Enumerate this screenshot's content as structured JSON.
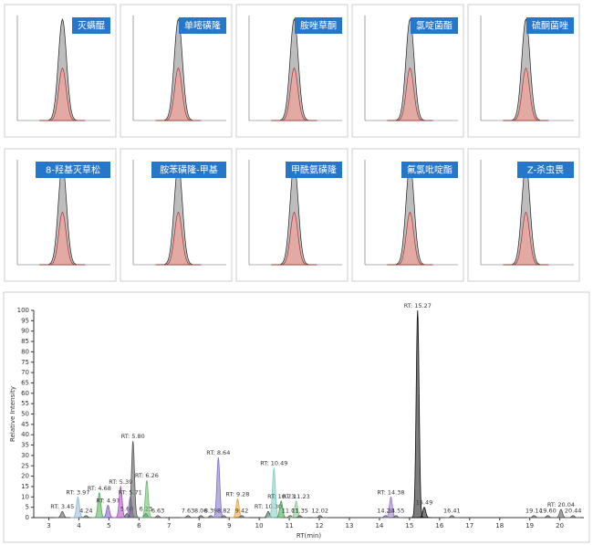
{
  "panels": [
    {
      "label": "灭螨醌"
    },
    {
      "label": "单嘧磺隆"
    },
    {
      "label": "胺唑草酮"
    },
    {
      "label": "氯啶菌酯"
    },
    {
      "label": "硫酮菌唑"
    },
    {
      "label": "8-羟基灭草松"
    },
    {
      "label": "胺苯磺隆-甲基"
    },
    {
      "label": "甲酰氨磺隆"
    },
    {
      "label": "氟氯吡啶酯"
    },
    {
      "label": "Z-杀虫畏"
    }
  ],
  "chart_data": {
    "type": "line",
    "xlabel": "RT(min)",
    "ylabel": "Relative Intensity",
    "xlim": [
      2.5,
      20.8
    ],
    "ylim": [
      0,
      100
    ],
    "xticks": [
      3,
      4,
      5,
      6,
      7,
      8,
      9,
      10,
      11,
      12,
      13,
      14,
      15,
      16,
      17,
      18,
      19,
      20
    ],
    "yticks": [
      0,
      5,
      10,
      15,
      20,
      25,
      30,
      35,
      40,
      45,
      50,
      55,
      60,
      65,
      70,
      75,
      80,
      85,
      90,
      95,
      100
    ],
    "peaks": [
      {
        "rt": 3.45,
        "height": 3,
        "label": "RT: 3.45",
        "color": "#555555"
      },
      {
        "rt": 3.97,
        "height": 10,
        "label": "RT: 3.97",
        "color": "#8fb8d8"
      },
      {
        "rt": 4.24,
        "height": 1,
        "label": "4.24",
        "color": "#555555"
      },
      {
        "rt": 4.68,
        "height": 12,
        "label": "RT: 4.68",
        "color": "#4caf50"
      },
      {
        "rt": 4.97,
        "height": 6,
        "label": "RT: 4.97",
        "color": "#7e57c2"
      },
      {
        "rt": 5.39,
        "height": 15,
        "label": "RT: 5.39",
        "color": "#ab47bc"
      },
      {
        "rt": 5.6,
        "height": 2,
        "label": "5.60",
        "color": "#555555"
      },
      {
        "rt": 5.71,
        "height": 10,
        "label": "RT: 5.71",
        "color": "#9575cd"
      },
      {
        "rt": 5.8,
        "height": 37,
        "label": "RT: 5.80",
        "color": "#555555"
      },
      {
        "rt": 6.23,
        "height": 2,
        "label": "6.23",
        "color": "#555555"
      },
      {
        "rt": 6.26,
        "height": 18,
        "label": "RT: 6.26",
        "color": "#66bb6a"
      },
      {
        "rt": 6.63,
        "height": 1,
        "label": "6.63",
        "color": "#555555"
      },
      {
        "rt": 7.63,
        "height": 1,
        "label": "7.63",
        "color": "#555555"
      },
      {
        "rt": 8.06,
        "height": 1,
        "label": "8.06",
        "color": "#555555"
      },
      {
        "rt": 8.39,
        "height": 1,
        "label": "8.39",
        "color": "#555555"
      },
      {
        "rt": 8.64,
        "height": 29,
        "label": "RT: 8.64",
        "color": "#7e6fc7"
      },
      {
        "rt": 8.82,
        "height": 1,
        "label": "8.82",
        "color": "#555555"
      },
      {
        "rt": 9.28,
        "height": 9,
        "label": "RT: 9.28",
        "color": "#f0a030"
      },
      {
        "rt": 9.42,
        "height": 1,
        "label": "9.42",
        "color": "#555555"
      },
      {
        "rt": 10.3,
        "height": 3,
        "label": "RT: 10.30",
        "color": "#555555"
      },
      {
        "rt": 10.49,
        "height": 24,
        "label": "RT: 10.49",
        "color": "#80cbc4"
      },
      {
        "rt": 10.73,
        "height": 8,
        "label": "RT: 10.73",
        "color": "#43a047"
      },
      {
        "rt": 11.03,
        "height": 1,
        "label": "11.03",
        "color": "#555555"
      },
      {
        "rt": 11.23,
        "height": 8,
        "label": "RT: 11.23",
        "color": "#81c784"
      },
      {
        "rt": 11.35,
        "height": 1,
        "label": "11.35",
        "color": "#555555"
      },
      {
        "rt": 12.02,
        "height": 1,
        "label": "12.02",
        "color": "#555555"
      },
      {
        "rt": 14.2,
        "height": 1,
        "label": "14.20",
        "color": "#555555"
      },
      {
        "rt": 14.38,
        "height": 10,
        "label": "RT: 14.38",
        "color": "#9575cd"
      },
      {
        "rt": 14.55,
        "height": 1,
        "label": "14.55",
        "color": "#555555"
      },
      {
        "rt": 15.27,
        "height": 100,
        "label": "RT: 15.27",
        "color": "#111111"
      },
      {
        "rt": 15.49,
        "height": 5,
        "label": "15.49",
        "color": "#111111"
      },
      {
        "rt": 16.41,
        "height": 1,
        "label": "16.41",
        "color": "#555555"
      },
      {
        "rt": 19.14,
        "height": 1,
        "label": "19.14",
        "color": "#555555"
      },
      {
        "rt": 19.6,
        "height": 1,
        "label": "19.60",
        "color": "#555555"
      },
      {
        "rt": 20.04,
        "height": 4,
        "label": "RT: 20.04",
        "color": "#555555"
      },
      {
        "rt": 20.44,
        "height": 1,
        "label": "20.44",
        "color": "#555555"
      }
    ]
  }
}
